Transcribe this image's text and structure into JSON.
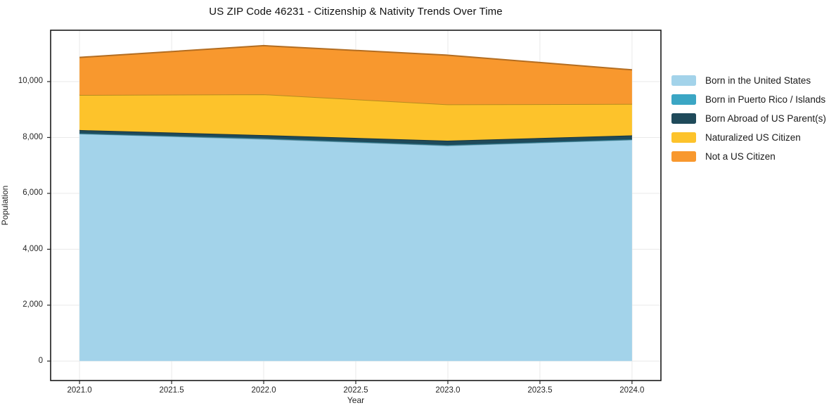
{
  "chart_data": {
    "type": "area",
    "stacked": true,
    "title": "US ZIP Code 46231 - Citizenship & Nativity Trends Over Time",
    "xlabel": "Year",
    "ylabel": "Population",
    "x": [
      2021,
      2022,
      2023,
      2024
    ],
    "series": [
      {
        "name": "Born in the United States",
        "color": "#a3d3ea",
        "values": [
          8140,
          7950,
          7715,
          7925
        ]
      },
      {
        "name": "Born in Puerto Rico / Islands",
        "color": "#3ba6c4",
        "values": [
          10,
          20,
          15,
          10
        ]
      },
      {
        "name": "Born Abroad of US Parent(s)",
        "color": "#1f4a5a",
        "values": [
          115,
          115,
          155,
          140
        ]
      },
      {
        "name": "Naturalized US Citizen",
        "color": "#fdc32b",
        "values": [
          1255,
          1460,
          1300,
          1125
        ]
      },
      {
        "name": "Not a US Citizen",
        "color": "#f8982e",
        "values": [
          1345,
          1740,
          1760,
          1220
        ]
      }
    ],
    "totals": [
      10865,
      11285,
      10945,
      10420
    ],
    "x_ticks": [
      "2021.0",
      "2021.5",
      "2022.0",
      "2022.5",
      "2023.0",
      "2023.5",
      "2024.0"
    ],
    "x_tick_values": [
      2021,
      2021.5,
      2022,
      2022.5,
      2023,
      2023.5,
      2024
    ],
    "y_ticks": [
      "0",
      "2,000",
      "4,000",
      "6,000",
      "8,000",
      "10,000"
    ],
    "y_tick_values": [
      0,
      2000,
      4000,
      6000,
      8000,
      10000
    ],
    "xlim": [
      2020.843,
      2024.157
    ],
    "ylim": [
      -697,
      11837
    ],
    "grid": true,
    "legend_position": "right-outside",
    "frame_color": "#1a1a1a",
    "grid_color": "#e9e9e9"
  }
}
